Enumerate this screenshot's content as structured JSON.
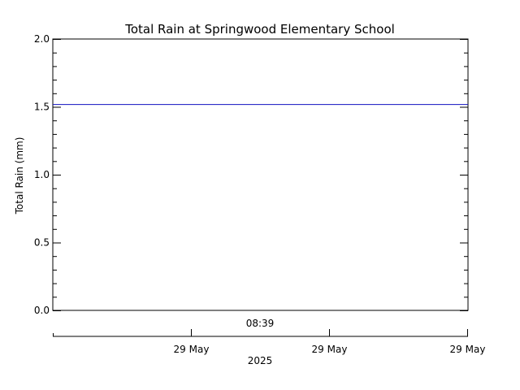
{
  "chart_data": {
    "type": "line",
    "title": "Total Rain at Springwood Elementary School",
    "ylabel": "Total Rain (mm)",
    "ylim": [
      0,
      2.0
    ],
    "yticks": [
      "0.0",
      "0.5",
      "1.0",
      "1.5",
      "2.0"
    ],
    "ytick_values": [
      0,
      0.5,
      1.0,
      1.5,
      2.0
    ],
    "x_time_label": "08:39",
    "x_date_ticks": [
      "29 May",
      "29 May",
      "29 May"
    ],
    "x_year_label": "2025",
    "grid": false,
    "series": [
      {
        "color": "#1010c0",
        "values": [
          1.52,
          1.52
        ]
      }
    ]
  }
}
